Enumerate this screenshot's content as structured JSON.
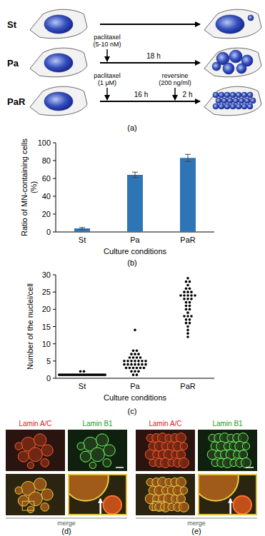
{
  "diagram": {
    "title": "(a)",
    "rows": [
      {
        "label": "St",
        "steps": []
      },
      {
        "label": "Pa",
        "steps": [
          {
            "drug": "paclitaxel",
            "dose": "(5-10 nM)",
            "time": "18 h"
          }
        ]
      },
      {
        "label": "PaR",
        "steps": [
          {
            "drug": "paclitaxel",
            "dose": "(1 μM)",
            "time": "16 h"
          },
          {
            "drug": "reversine",
            "dose": "(200 ng/ml)",
            "time": "2 h"
          }
        ]
      }
    ]
  },
  "chart_data": [
    {
      "type": "bar",
      "title": "(b)",
      "y_label": [
        "Ratio of MN-containing cells",
        "(%)"
      ],
      "x_label": "Culture conditions",
      "categories": [
        "St",
        "Pa",
        "PaR"
      ],
      "values": [
        4,
        64,
        83
      ],
      "errors": [
        1,
        3,
        4
      ],
      "color": "#2e75b6",
      "ylim": [
        0,
        100
      ],
      "yticks": [
        0,
        20,
        40,
        60,
        80,
        100
      ]
    },
    {
      "type": "dot",
      "title": "(c)",
      "y_label": "Number of the nuclei/cell",
      "x_label": "Culture conditions",
      "categories": [
        "St",
        "Pa",
        "PaR"
      ],
      "color": "#000000",
      "points": [
        [
          1,
          1,
          1,
          1,
          1,
          1,
          1,
          1,
          1,
          1,
          1,
          1,
          1,
          2,
          2,
          1,
          1,
          1,
          1,
          1,
          1,
          1,
          1,
          1,
          1,
          1,
          1,
          1,
          1,
          1
        ],
        [
          14,
          8,
          8,
          7,
          7,
          7,
          6,
          6,
          6,
          6,
          5,
          5,
          5,
          5,
          5,
          5,
          4,
          4,
          4,
          4,
          4,
          4,
          3,
          3,
          3,
          3,
          3,
          3,
          2,
          2,
          2,
          1,
          1,
          5,
          4
        ],
        [
          29,
          28,
          28,
          27,
          26,
          26,
          25,
          25,
          25,
          24,
          24,
          24,
          24,
          23,
          23,
          23,
          22,
          22,
          21,
          21,
          20,
          20,
          19,
          18,
          18,
          18,
          17,
          17,
          16,
          16,
          15,
          14,
          13,
          12,
          24
        ]
      ],
      "ylim": [
        0,
        30
      ],
      "yticks": [
        0,
        5,
        10,
        15,
        20,
        25,
        30
      ]
    }
  ],
  "micrographs": [
    {
      "title": "(d)",
      "channels": [
        "Lamin A/C",
        "Lamin B1"
      ],
      "merge": "merge"
    },
    {
      "title": "(e)",
      "channels": [
        "Lamin A/C",
        "Lamin B1"
      ],
      "merge": "merge"
    }
  ]
}
